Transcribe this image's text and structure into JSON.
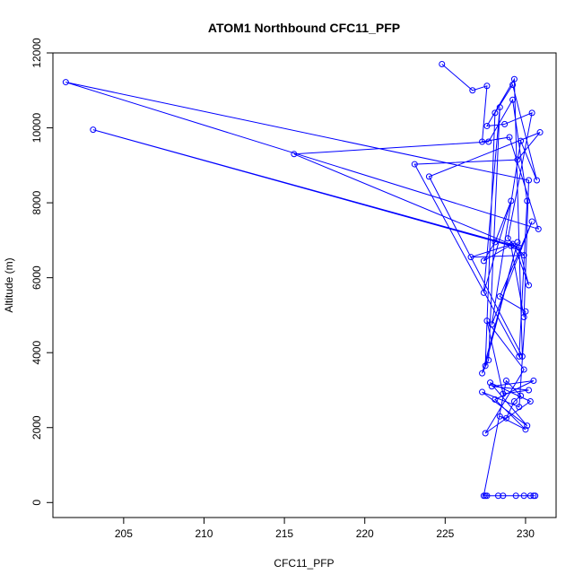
{
  "chart_data": {
    "type": "line",
    "title": "ATOM1 Northbound CFC11_PFP",
    "xlabel": "CFC11_PFP",
    "ylabel": "Altitude (m)",
    "xlim": [
      200.6,
      231.9
    ],
    "ylim": [
      -400,
      12000
    ],
    "x_ticks": [
      205,
      210,
      215,
      220,
      225,
      230
    ],
    "y_ticks": [
      0,
      2000,
      4000,
      6000,
      8000,
      10000,
      12000
    ],
    "grid": false,
    "markers": "open-circle",
    "color": "#0000ff",
    "series": [
      {
        "x": [
          224.8,
          226.7,
          227.6,
          227.3,
          229.0,
          230.8,
          201.4,
          230.2,
          229.9,
          229.1,
          203.1,
          229.3,
          230.2,
          229.6,
          215.6,
          227.7,
          229.2,
          230.1,
          229.6,
          223.1,
          229.5,
          230.9,
          224.0,
          229.8,
          229.3,
          227.6,
          228.7,
          230.4,
          228.9,
          229.9,
          226.6,
          229.2,
          227.4,
          228.1,
          229.1,
          227.4,
          228.4,
          227.7,
          227.3,
          229.5,
          227.5,
          228.1,
          229.2,
          230.7,
          229.7,
          227.9,
          230.4,
          228.4,
          230.0,
          229.6,
          227.3,
          230.1,
          227.8,
          230.3,
          227.5,
          229.9,
          227.6,
          228.6,
          230.2,
          227.9,
          230.5,
          228.1,
          230.0,
          228.4,
          228.8,
          229.3,
          229.7,
          228.8,
          227.4,
          230.5,
          228.3,
          229.4,
          229.9,
          227.5,
          228.6,
          230.3,
          227.6,
          230.6
        ],
        "y": [
          11700,
          11000,
          11120,
          9630,
          9750,
          7300,
          11220,
          8600,
          4950,
          6850,
          9950,
          6850,
          5800,
          6800,
          9300,
          9630,
          10750,
          8050,
          3900,
          9030,
          9150,
          9880,
          8700,
          3900,
          11300,
          10050,
          10100,
          10400,
          7050,
          6600,
          6550,
          6900,
          6450,
          6950,
          8050,
          5600,
          10550,
          3800,
          3450,
          6950,
          3650,
          10400,
          11150,
          8600,
          9650,
          4750,
          7500,
          5500,
          5100,
          2550,
          2950,
          2050,
          3200,
          2700,
          1850,
          3550,
          4850,
          2900,
          3000,
          3100,
          3250,
          2750,
          1950,
          2300,
          2250,
          2700,
          2850,
          3250,
          180,
          180,
          180,
          180,
          180,
          180,
          180,
          180,
          180,
          180
        ]
      }
    ]
  }
}
